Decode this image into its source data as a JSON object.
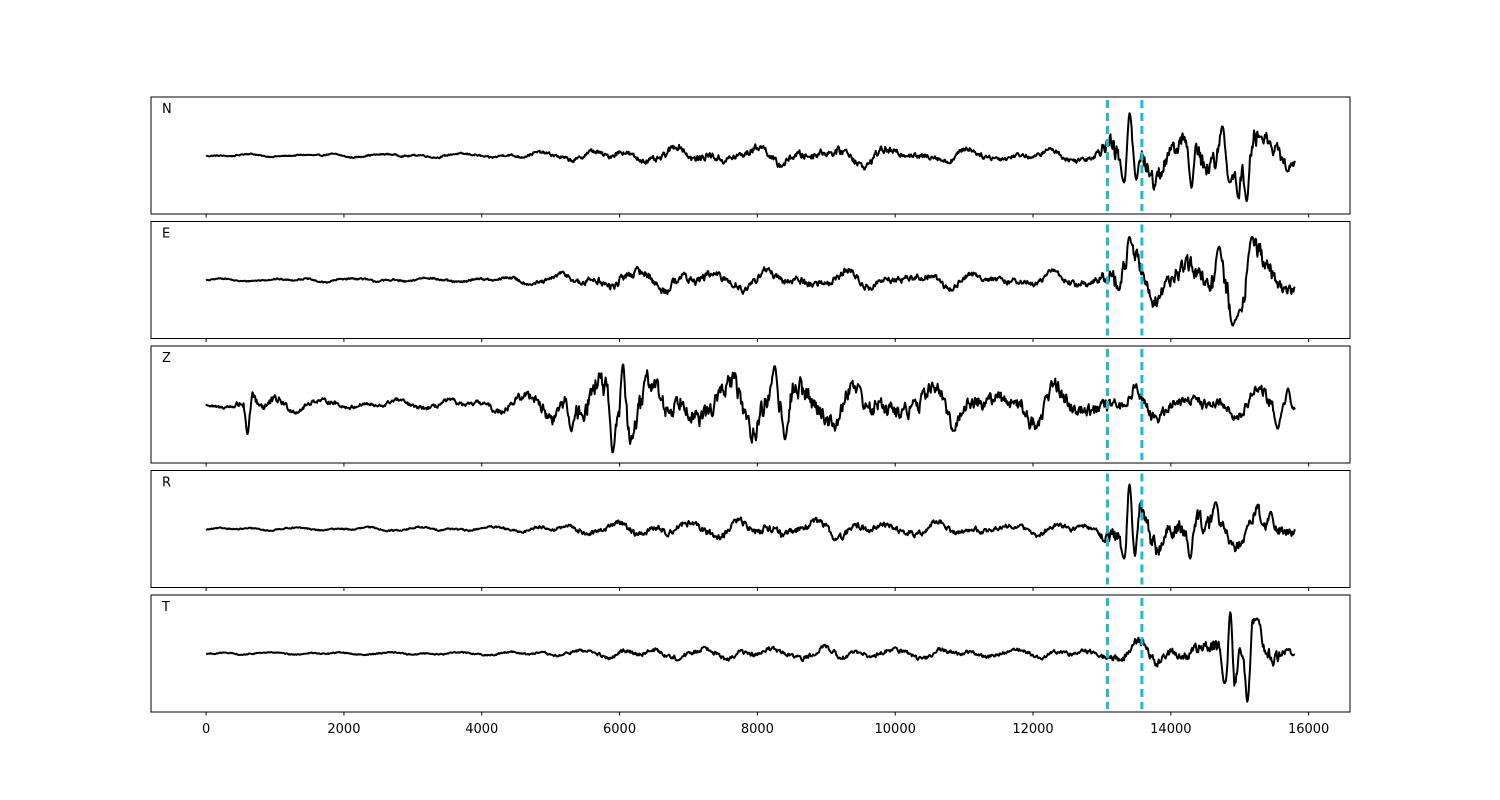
{
  "chart_data": {
    "type": "line",
    "title": "",
    "xlabel": "",
    "ylabel": "",
    "xlim": [
      -800,
      16600
    ],
    "xticks": [
      0,
      2000,
      4000,
      6000,
      8000,
      10000,
      12000,
      14000,
      16000
    ],
    "xtick_labels": [
      "0",
      "2000",
      "4000",
      "6000",
      "8000",
      "10000",
      "12000",
      "14000",
      "16000"
    ],
    "shared_x": true,
    "grid": false,
    "legend": "none",
    "sample_range": [
      0,
      15800
    ],
    "pick_lines": {
      "color": "#17becf",
      "style": "dashed",
      "x": [
        13080,
        13580
      ]
    },
    "trace_color": "#000000",
    "panels": [
      {
        "label": "N",
        "ylim": [
          -1.0,
          1.0
        ],
        "envelope": [
          [
            0,
            0.03
          ],
          [
            2000,
            0.04
          ],
          [
            4000,
            0.05
          ],
          [
            4800,
            0.08
          ],
          [
            5900,
            0.15
          ],
          [
            7000,
            0.2
          ],
          [
            8000,
            0.2
          ],
          [
            9500,
            0.22
          ],
          [
            10500,
            0.16
          ],
          [
            12000,
            0.12
          ],
          [
            12900,
            0.15
          ],
          [
            13100,
            0.55
          ],
          [
            13400,
            0.85
          ],
          [
            13600,
            0.6
          ],
          [
            14000,
            0.45
          ],
          [
            14500,
            0.55
          ],
          [
            14800,
            0.6
          ],
          [
            15100,
            0.85
          ],
          [
            15400,
            0.5
          ],
          [
            15800,
            0.2
          ]
        ],
        "peaks": [
          {
            "x": 13400,
            "y": 0.85
          },
          {
            "x": 13320,
            "y": -0.5
          },
          {
            "x": 13500,
            "y": -0.45
          },
          {
            "x": 14300,
            "y": -0.6
          },
          {
            "x": 14750,
            "y": 0.55
          },
          {
            "x": 14850,
            "y": -0.5
          },
          {
            "x": 15100,
            "y": -0.85
          },
          {
            "x": 15300,
            "y": 0.35
          }
        ]
      },
      {
        "label": "E",
        "ylim": [
          -1.0,
          1.0
        ],
        "envelope": [
          [
            0,
            0.03
          ],
          [
            2000,
            0.05
          ],
          [
            4000,
            0.06
          ],
          [
            5000,
            0.12
          ],
          [
            6000,
            0.25
          ],
          [
            7000,
            0.22
          ],
          [
            8000,
            0.22
          ],
          [
            9000,
            0.2
          ],
          [
            10000,
            0.18
          ],
          [
            12000,
            0.15
          ],
          [
            12900,
            0.2
          ],
          [
            13100,
            0.45
          ],
          [
            13400,
            0.75
          ],
          [
            13600,
            0.45
          ],
          [
            14000,
            0.4
          ],
          [
            14500,
            0.55
          ],
          [
            14900,
            0.85
          ],
          [
            15200,
            0.85
          ],
          [
            15500,
            0.45
          ],
          [
            15800,
            0.25
          ]
        ],
        "peaks": [
          {
            "x": 13400,
            "y": 0.8
          },
          {
            "x": 14700,
            "y": 0.62
          },
          {
            "x": 14900,
            "y": -0.85
          },
          {
            "x": 15180,
            "y": 0.8
          },
          {
            "x": 15000,
            "y": -0.55
          }
        ]
      },
      {
        "label": "Z",
        "ylim": [
          -1.0,
          1.0
        ],
        "envelope": [
          [
            0,
            0.06
          ],
          [
            400,
            0.12
          ],
          [
            600,
            0.45
          ],
          [
            800,
            0.3
          ],
          [
            1200,
            0.15
          ],
          [
            2000,
            0.1
          ],
          [
            4000,
            0.12
          ],
          [
            4800,
            0.3
          ],
          [
            5500,
            0.55
          ],
          [
            6000,
            0.85
          ],
          [
            6500,
            0.55
          ],
          [
            7000,
            0.5
          ],
          [
            8000,
            0.6
          ],
          [
            8500,
            0.7
          ],
          [
            9000,
            0.45
          ],
          [
            10000,
            0.45
          ],
          [
            11000,
            0.4
          ],
          [
            12000,
            0.45
          ],
          [
            13000,
            0.35
          ],
          [
            14000,
            0.3
          ],
          [
            15000,
            0.25
          ],
          [
            15500,
            0.4
          ],
          [
            15800,
            0.2
          ]
        ],
        "peaks": [
          {
            "x": 600,
            "y": -0.55
          },
          {
            "x": 5900,
            "y": -0.9
          },
          {
            "x": 6050,
            "y": 0.75
          },
          {
            "x": 8250,
            "y": 0.72
          },
          {
            "x": 8400,
            "y": -0.65
          },
          {
            "x": 5300,
            "y": -0.5
          },
          {
            "x": 15550,
            "y": -0.45
          },
          {
            "x": 15700,
            "y": 0.3
          }
        ]
      },
      {
        "label": "R",
        "ylim": [
          -1.0,
          1.0
        ],
        "envelope": [
          [
            0,
            0.03
          ],
          [
            2000,
            0.04
          ],
          [
            4000,
            0.05
          ],
          [
            4800,
            0.08
          ],
          [
            5900,
            0.15
          ],
          [
            7000,
            0.18
          ],
          [
            8000,
            0.2
          ],
          [
            9500,
            0.2
          ],
          [
            10500,
            0.15
          ],
          [
            12000,
            0.12
          ],
          [
            12900,
            0.15
          ],
          [
            13100,
            0.45
          ],
          [
            13400,
            0.9
          ],
          [
            13600,
            0.5
          ],
          [
            14000,
            0.45
          ],
          [
            14500,
            0.5
          ],
          [
            15000,
            0.35
          ],
          [
            15500,
            0.4
          ],
          [
            15800,
            0.2
          ]
        ],
        "peaks": [
          {
            "x": 13400,
            "y": 0.95
          },
          {
            "x": 13320,
            "y": -0.55
          },
          {
            "x": 13480,
            "y": -0.5
          },
          {
            "x": 14280,
            "y": -0.55
          },
          {
            "x": 14650,
            "y": 0.5
          },
          {
            "x": 15450,
            "y": 0.32
          }
        ]
      },
      {
        "label": "T",
        "ylim": [
          -1.0,
          1.0
        ],
        "envelope": [
          [
            0,
            0.03
          ],
          [
            2000,
            0.03
          ],
          [
            4000,
            0.04
          ],
          [
            5000,
            0.06
          ],
          [
            6000,
            0.12
          ],
          [
            7000,
            0.13
          ],
          [
            8000,
            0.14
          ],
          [
            9000,
            0.14
          ],
          [
            10000,
            0.12
          ],
          [
            12000,
            0.1
          ],
          [
            12900,
            0.12
          ],
          [
            13100,
            0.2
          ],
          [
            13600,
            0.25
          ],
          [
            14200,
            0.25
          ],
          [
            14600,
            0.35
          ],
          [
            14850,
            0.85
          ],
          [
            15100,
            0.85
          ],
          [
            15400,
            0.45
          ],
          [
            15800,
            0.15
          ]
        ],
        "peaks": [
          {
            "x": 14860,
            "y": 0.82
          },
          {
            "x": 14780,
            "y": -0.55
          },
          {
            "x": 15110,
            "y": -0.9
          },
          {
            "x": 15250,
            "y": 0.65
          },
          {
            "x": 15000,
            "y": 0.1
          }
        ]
      }
    ]
  }
}
